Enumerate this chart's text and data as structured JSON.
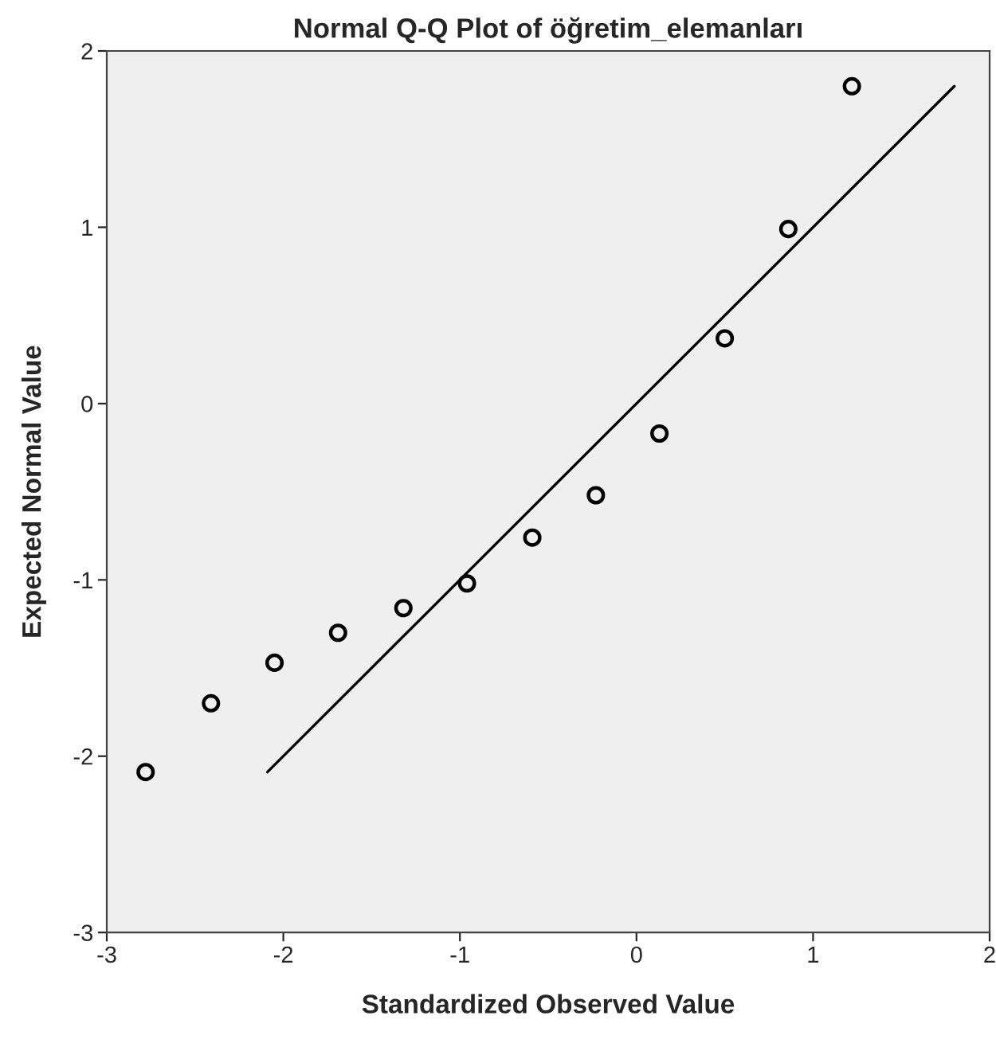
{
  "chart_data": {
    "type": "scatter",
    "title": "Normal Q-Q Plot of öğretim_elemanları",
    "xlabel": "Standardized Observed Value",
    "ylabel": "Expected Normal Value",
    "xlim": [
      -3,
      2
    ],
    "ylim": [
      -3,
      2
    ],
    "xticks": [
      -3,
      -2,
      -1,
      0,
      1,
      2
    ],
    "yticks": [
      -3,
      -2,
      -1,
      0,
      1,
      2
    ],
    "grid": false,
    "series": [
      {
        "marker": "circle",
        "color": "#000000",
        "x": [
          -2.78,
          -2.41,
          -2.05,
          -1.69,
          -1.32,
          -0.96,
          -0.59,
          -0.23,
          0.13,
          0.5,
          0.86,
          1.22
        ],
        "values": [
          -2.09,
          -1.7,
          -1.47,
          -1.3,
          -1.16,
          -1.02,
          -0.76,
          -0.52,
          -0.17,
          0.37,
          0.99,
          1.8
        ]
      },
      {
        "type": "line",
        "marker": "none",
        "color": "#000000",
        "line_style": "solid",
        "x": [
          -2.09,
          1.8
        ],
        "values": [
          -2.09,
          1.8
        ]
      }
    ]
  }
}
